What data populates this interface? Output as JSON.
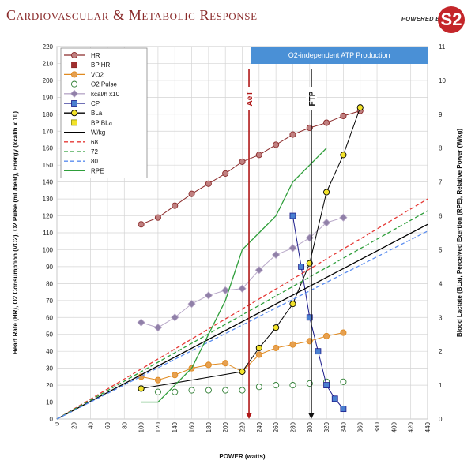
{
  "header": {
    "title": "Cardiovascular & Metabolic Response",
    "logo_text": "POWERED BY",
    "logo_mark": "S2"
  },
  "chart_data": {
    "type": "line",
    "xlabel": "POWER (watts)",
    "ylabel_left": "Heart Rate (HR), O2 Consumption (VO2), O2 Pulse (mL/beat), Energy (kcal/h x 10)",
    "ylabel_right": "Blood Lactate (BLa), Perceived Exertion (RPE), Relative Power (W/kg)",
    "xlim": [
      0,
      440
    ],
    "ylim_left": [
      0,
      220
    ],
    "ylim_right": [
      0,
      11
    ],
    "x_ticks": [
      0,
      20,
      40,
      60,
      80,
      100,
      120,
      140,
      160,
      180,
      200,
      220,
      240,
      260,
      280,
      300,
      320,
      340,
      360,
      380,
      400,
      420,
      440
    ],
    "y_left_ticks": [
      0,
      10,
      20,
      30,
      40,
      50,
      60,
      70,
      80,
      90,
      100,
      110,
      120,
      130,
      140,
      150,
      160,
      170,
      180,
      190,
      200,
      210,
      220
    ],
    "y_right_ticks": [
      0,
      1,
      2,
      3,
      4,
      5,
      6,
      7,
      8,
      9,
      10,
      11
    ],
    "grid": true,
    "legend_position": "top-left",
    "annotations": {
      "band_label": "O2-independent ATP Production",
      "band_start": 230,
      "aet_label": "AeT",
      "aet_x": 228,
      "ftp_label": "FTP",
      "ftp_x": 302
    },
    "series": [
      {
        "name": "HR",
        "axis": "left",
        "style": "line-marker",
        "color": "#8b2a2a",
        "marker": "circle",
        "marker_fill": "#c08080",
        "x": [
          100,
          120,
          140,
          160,
          180,
          200,
          220,
          240,
          260,
          280,
          300,
          320,
          340,
          360
        ],
        "y": [
          115,
          119,
          126,
          133,
          139,
          145,
          152,
          156,
          162,
          168,
          172,
          175,
          179,
          182
        ]
      },
      {
        "name": "BP HR",
        "axis": "left",
        "style": "marker",
        "color": "#8b2a2a",
        "marker": "square",
        "marker_fill": "#a03030",
        "x": [],
        "y": []
      },
      {
        "name": "VO2",
        "axis": "left",
        "style": "line-marker",
        "color": "#e08a20",
        "marker": "circle",
        "marker_fill": "#e6a050",
        "x": [
          100,
          120,
          140,
          160,
          180,
          200,
          220,
          240,
          260,
          280,
          300,
          320,
          340
        ],
        "y": [
          25,
          23,
          26,
          30,
          32,
          33,
          28,
          38,
          42,
          44,
          46,
          49,
          51
        ]
      },
      {
        "name": "O2 Pulse",
        "axis": "left",
        "style": "marker",
        "color": "#2e7d32",
        "marker": "circle",
        "marker_fill": "#ffffff",
        "x": [
          100,
          120,
          140,
          160,
          180,
          200,
          220,
          240,
          260,
          280,
          300,
          320,
          340
        ],
        "y": [
          18,
          16,
          16,
          17,
          17,
          17,
          17,
          19,
          20,
          20,
          21,
          22,
          22
        ]
      },
      {
        "name": "kcal/h x10",
        "axis": "left",
        "style": "line-marker",
        "color": "#b8a8c8",
        "marker": "diamond",
        "marker_fill": "#9080a8",
        "x": [
          100,
          120,
          140,
          160,
          180,
          200,
          220,
          240,
          260,
          280,
          300,
          320,
          340
        ],
        "y": [
          57,
          54,
          60,
          68,
          73,
          76,
          77,
          88,
          97,
          101,
          107,
          116,
          119
        ]
      },
      {
        "name": "CP",
        "axis": "right",
        "style": "line-marker",
        "color": "#1a1a8a",
        "marker": "square",
        "marker_fill": "#4a7fd0",
        "x": [
          280,
          290,
          300,
          310,
          320,
          330,
          340
        ],
        "y": [
          6.0,
          4.5,
          3.0,
          2.0,
          1.0,
          0.6,
          0.3
        ]
      },
      {
        "name": "BLa",
        "axis": "right",
        "style": "line-marker",
        "color": "#000000",
        "marker": "circle",
        "marker_fill": "#f2e22a",
        "x": [
          100,
          220,
          240,
          260,
          280,
          300,
          320,
          340,
          360
        ],
        "y": [
          0.9,
          1.4,
          2.1,
          2.7,
          3.4,
          4.6,
          6.7,
          7.8,
          9.2
        ]
      },
      {
        "name": "BP BLa",
        "axis": "right",
        "style": "marker",
        "color": "#8a8a00",
        "marker": "square",
        "marker_fill": "#f2e22a",
        "x": [],
        "y": []
      },
      {
        "name": "W/kg",
        "axis": "right",
        "style": "line",
        "color": "#000000",
        "dash": "",
        "x": [
          0,
          440
        ],
        "y": [
          0,
          5.75
        ]
      },
      {
        "name": "68",
        "axis": "right",
        "style": "line",
        "color": "#e53935",
        "dash": "5,3",
        "x": [
          0,
          440
        ],
        "y": [
          0,
          6.5
        ]
      },
      {
        "name": "72",
        "axis": "right",
        "style": "line",
        "color": "#2e9e3a",
        "dash": "5,3",
        "x": [
          0,
          440
        ],
        "y": [
          0,
          6.15
        ]
      },
      {
        "name": "80",
        "axis": "right",
        "style": "line",
        "color": "#5b8def",
        "dash": "5,3",
        "x": [
          0,
          440
        ],
        "y": [
          0,
          5.55
        ]
      },
      {
        "name": "RPE",
        "axis": "right",
        "style": "line",
        "color": "#2e9e3a",
        "dash": "",
        "x": [
          100,
          120,
          140,
          160,
          180,
          200,
          220,
          240,
          260,
          280,
          300,
          320
        ],
        "y": [
          0.5,
          0.5,
          1.0,
          1.5,
          2.5,
          3.5,
          5.0,
          5.5,
          6.0,
          7.0,
          7.5,
          8.0
        ]
      }
    ]
  }
}
